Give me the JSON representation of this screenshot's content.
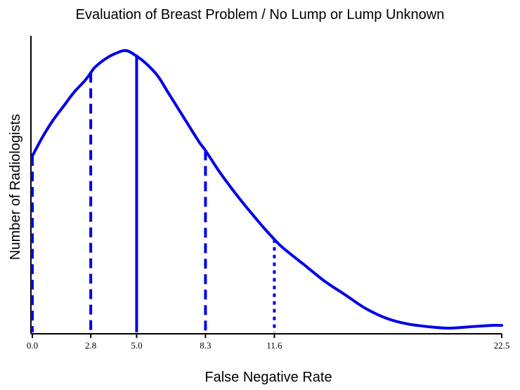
{
  "chart_data": {
    "type": "line",
    "title": "Evaluation of Breast Problem / No Lump or Lump Unknown",
    "xlabel": "False Negative Rate",
    "ylabel": "Number of Radiologists",
    "xlim": [
      0,
      22.5
    ],
    "ylim": [
      0,
      1.0
    ],
    "grid": false,
    "legend": "none",
    "y_ticks_shown": false,
    "x_ticks": [
      {
        "value": 0.0,
        "label": "0.0"
      },
      {
        "value": 2.8,
        "label": "2.8"
      },
      {
        "value": 5.0,
        "label": "5.0"
      },
      {
        "value": 8.3,
        "label": "8.3"
      },
      {
        "value": 11.6,
        "label": "11.6"
      },
      {
        "value": 22.5,
        "label": "22.5"
      }
    ],
    "series": [
      {
        "color": "#0000e6",
        "x": [
          0,
          0.5,
          1,
          1.5,
          2,
          2.5,
          2.8,
          3,
          3.5,
          4,
          4.5,
          5,
          5.5,
          6,
          6.5,
          7,
          7.5,
          8,
          8.3,
          9,
          10,
          11,
          11.6,
          12,
          13,
          14,
          15,
          16,
          17,
          18,
          19,
          20,
          21,
          22,
          22.5
        ],
        "y": [
          0.62,
          0.69,
          0.75,
          0.8,
          0.85,
          0.89,
          0.92,
          0.94,
          0.97,
          0.99,
          1.0,
          0.98,
          0.95,
          0.91,
          0.85,
          0.79,
          0.73,
          0.67,
          0.64,
          0.56,
          0.46,
          0.37,
          0.32,
          0.29,
          0.23,
          0.17,
          0.12,
          0.07,
          0.035,
          0.015,
          0.005,
          0.0,
          0.005,
          0.01,
          0.01
        ]
      }
    ],
    "reference_lines": [
      {
        "x": 0.0,
        "y": 0.62,
        "style": "dashed"
      },
      {
        "x": 2.8,
        "y": 0.92,
        "style": "dashed"
      },
      {
        "x": 5.0,
        "y": 0.985,
        "style": "solid"
      },
      {
        "x": 8.3,
        "y": 0.64,
        "style": "dashed"
      },
      {
        "x": 11.6,
        "y": 0.32,
        "style": "dotted"
      }
    ]
  }
}
